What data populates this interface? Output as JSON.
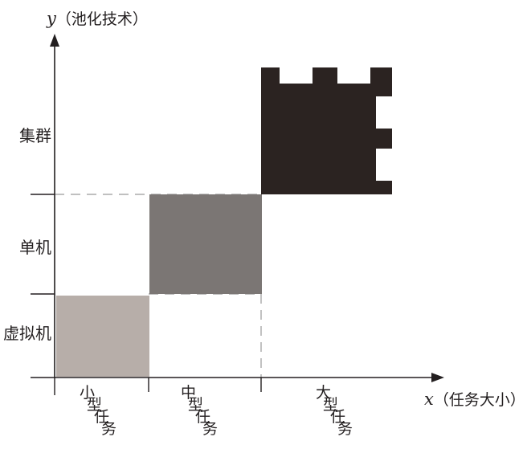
{
  "y_axis": {
    "var": "y",
    "title": "（池化技术）"
  },
  "x_axis": {
    "var": "x",
    "title": "（任务大小）"
  },
  "y_levels": [
    {
      "id": "vm",
      "label": "虚拟机"
    },
    {
      "id": "single",
      "label": "单机"
    },
    {
      "id": "cluster",
      "label": "集群"
    }
  ],
  "x_levels": [
    {
      "id": "small",
      "label": "小型任务"
    },
    {
      "id": "medium",
      "label": "中型任务"
    },
    {
      "id": "large",
      "label": "大型任务"
    }
  ],
  "blocks": [
    {
      "id": "small-vm",
      "x_level": "small",
      "y_level": "vm",
      "color": "#b7aea9"
    },
    {
      "id": "medium-single",
      "x_level": "medium",
      "y_level": "single",
      "color": "#7b7674"
    },
    {
      "id": "large-cluster",
      "x_level": "large",
      "y_level": "cluster",
      "color": "#2b2321"
    }
  ],
  "colors": {
    "axis": "#231f20",
    "guide": "#9a9a9a",
    "background": "#ffffff"
  }
}
